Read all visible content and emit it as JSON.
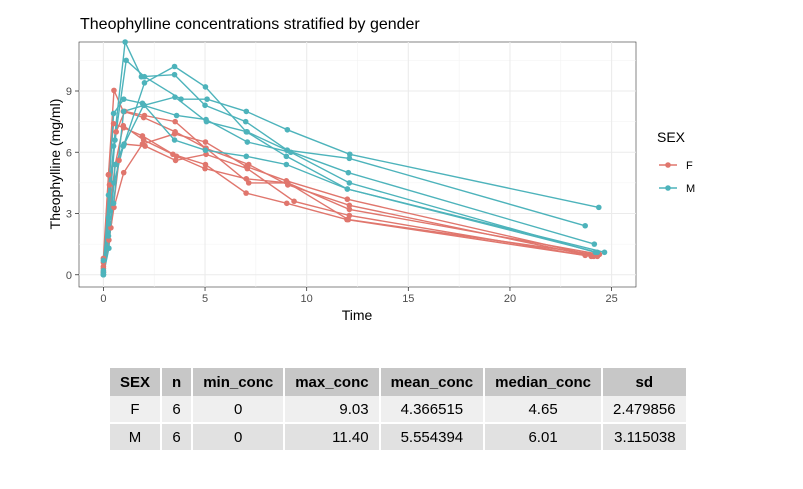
{
  "chart_data": {
    "type": "line",
    "title": "Theophylline concentrations stratified by gender",
    "xlabel": "Time",
    "ylabel": "Theophylline (mg/ml)",
    "xlim": [
      -1.2,
      26.2
    ],
    "ylim": [
      -0.6,
      11.4
    ],
    "xticks": [
      0,
      5,
      10,
      15,
      20,
      25
    ],
    "yticks": [
      0,
      3,
      6,
      9
    ],
    "grid": true,
    "legend": {
      "title": "SEX",
      "position": "right",
      "entries": [
        "F",
        "M"
      ]
    },
    "colors": {
      "F": "#e0766d",
      "M": "#4db3bb"
    },
    "series": [
      {
        "group": "F",
        "x": [
          0,
          0.27,
          0.52,
          1.0,
          1.92,
          3.5,
          5.02,
          7.03,
          9.0,
          12.0,
          24.3
        ],
        "y": [
          0.15,
          1.7,
          3.3,
          5.0,
          6.4,
          6.9,
          6.5,
          5.3,
          4.6,
          3.7,
          0.9
        ]
      },
      {
        "group": "F",
        "x": [
          0,
          0.25,
          0.5,
          1.0,
          1.92,
          3.6,
          5.0,
          7.03,
          9.07,
          12.1,
          24.4
        ],
        "y": [
          0.3,
          4.9,
          7.4,
          7.2,
          6.8,
          5.8,
          5.2,
          4.7,
          4.5,
          3.2,
          1.0
        ]
      },
      {
        "group": "F",
        "x": [
          0,
          0.3,
          0.63,
          1.05,
          2.02,
          3.53,
          5.02,
          7.15,
          9.07,
          12.1,
          24.12
        ],
        "y": [
          0.4,
          4.4,
          7.0,
          8.0,
          7.8,
          7.5,
          6.2,
          5.4,
          4.4,
          3.4,
          0.9
        ]
      },
      {
        "group": "F",
        "x": [
          0,
          0.37,
          0.77,
          1.02,
          2.05,
          3.55,
          5.05,
          7.08,
          9.38,
          12.1,
          23.7
        ],
        "y": [
          0.1,
          2.3,
          5.6,
          6.4,
          6.3,
          5.6,
          5.9,
          5.2,
          3.6,
          2.9,
          0.95
        ]
      },
      {
        "group": "F",
        "x": [
          0,
          0.58,
          0.98,
          1.98,
          3.42,
          5.02,
          7.02,
          9.02,
          11.98,
          24.0
        ],
        "y": [
          0.6,
          5.4,
          7.3,
          6.6,
          5.9,
          5.4,
          4.0,
          3.5,
          2.7,
          0.9
        ]
      },
      {
        "group": "F",
        "x": [
          0,
          0.25,
          0.52,
          0.98,
          1.98,
          3.53,
          5.05,
          7.15,
          9.07,
          12.05,
          24.15
        ],
        "y": [
          0.8,
          4.9,
          9.03,
          8.0,
          7.7,
          7.0,
          6.2,
          4.5,
          4.5,
          2.7,
          1.0
        ]
      },
      {
        "group": "M",
        "x": [
          0,
          0.25,
          0.57,
          1.12,
          2.02,
          3.82,
          5.1,
          7.03,
          9.05,
          12.12,
          24.37
        ],
        "y": [
          0.7,
          2.8,
          6.6,
          10.5,
          9.7,
          8.6,
          8.6,
          8.0,
          7.1,
          5.9,
          3.3
        ]
      },
      {
        "group": "M",
        "x": [
          0,
          0.27,
          0.58,
          1.02,
          2.02,
          3.5,
          5.02,
          7.03,
          9.0,
          12.0,
          24.65
        ],
        "y": [
          0.0,
          1.3,
          5.4,
          6.4,
          9.4,
          10.2,
          9.2,
          7.0,
          5.8,
          4.2,
          1.1
        ]
      },
      {
        "group": "M",
        "x": [
          0,
          0.25,
          0.5,
          1.0,
          1.92,
          3.5,
          5.02,
          7.03,
          9.0,
          12.0,
          24.3
        ],
        "y": [
          0.2,
          3.9,
          7.9,
          8.6,
          8.4,
          6.6,
          6.1,
          5.8,
          5.4,
          4.2,
          1.1
        ]
      },
      {
        "group": "M",
        "x": [
          0,
          0.5,
          1.07,
          1.87,
          3.5,
          5.0,
          7.0,
          9.05,
          12.1,
          23.7
        ],
        "y": [
          0.0,
          6.3,
          11.4,
          9.7,
          9.8,
          8.3,
          7.5,
          6.1,
          5.7,
          2.4
        ]
      },
      {
        "group": "M",
        "x": [
          0,
          0.27,
          0.52,
          0.98,
          1.98,
          3.6,
          5.05,
          7.08,
          9.22,
          12.1,
          24.2
        ],
        "y": [
          0.1,
          2.5,
          4.5,
          6.3,
          8.3,
          7.8,
          7.6,
          6.5,
          6.0,
          4.5,
          1.1
        ]
      },
      {
        "group": "M",
        "x": [
          0,
          0.25,
          0.5,
          1.0,
          2.0,
          3.52,
          5.07,
          7.07,
          9.03,
          12.05,
          24.15
        ],
        "y": [
          0.0,
          1.9,
          3.5,
          8.0,
          8.3,
          8.7,
          7.5,
          7.0,
          6.1,
          5.0,
          1.5
        ]
      }
    ]
  },
  "summary_table": {
    "headers": [
      "SEX",
      "n",
      "min_conc",
      "max_conc",
      "mean_conc",
      "median_conc",
      "sd"
    ],
    "rows": [
      [
        "F",
        "6",
        "0",
        "9.03",
        "4.366515",
        "4.65",
        "2.479856"
      ],
      [
        "M",
        "6",
        "0",
        "11.40",
        "5.554394",
        "6.01",
        "3.115038"
      ]
    ]
  }
}
